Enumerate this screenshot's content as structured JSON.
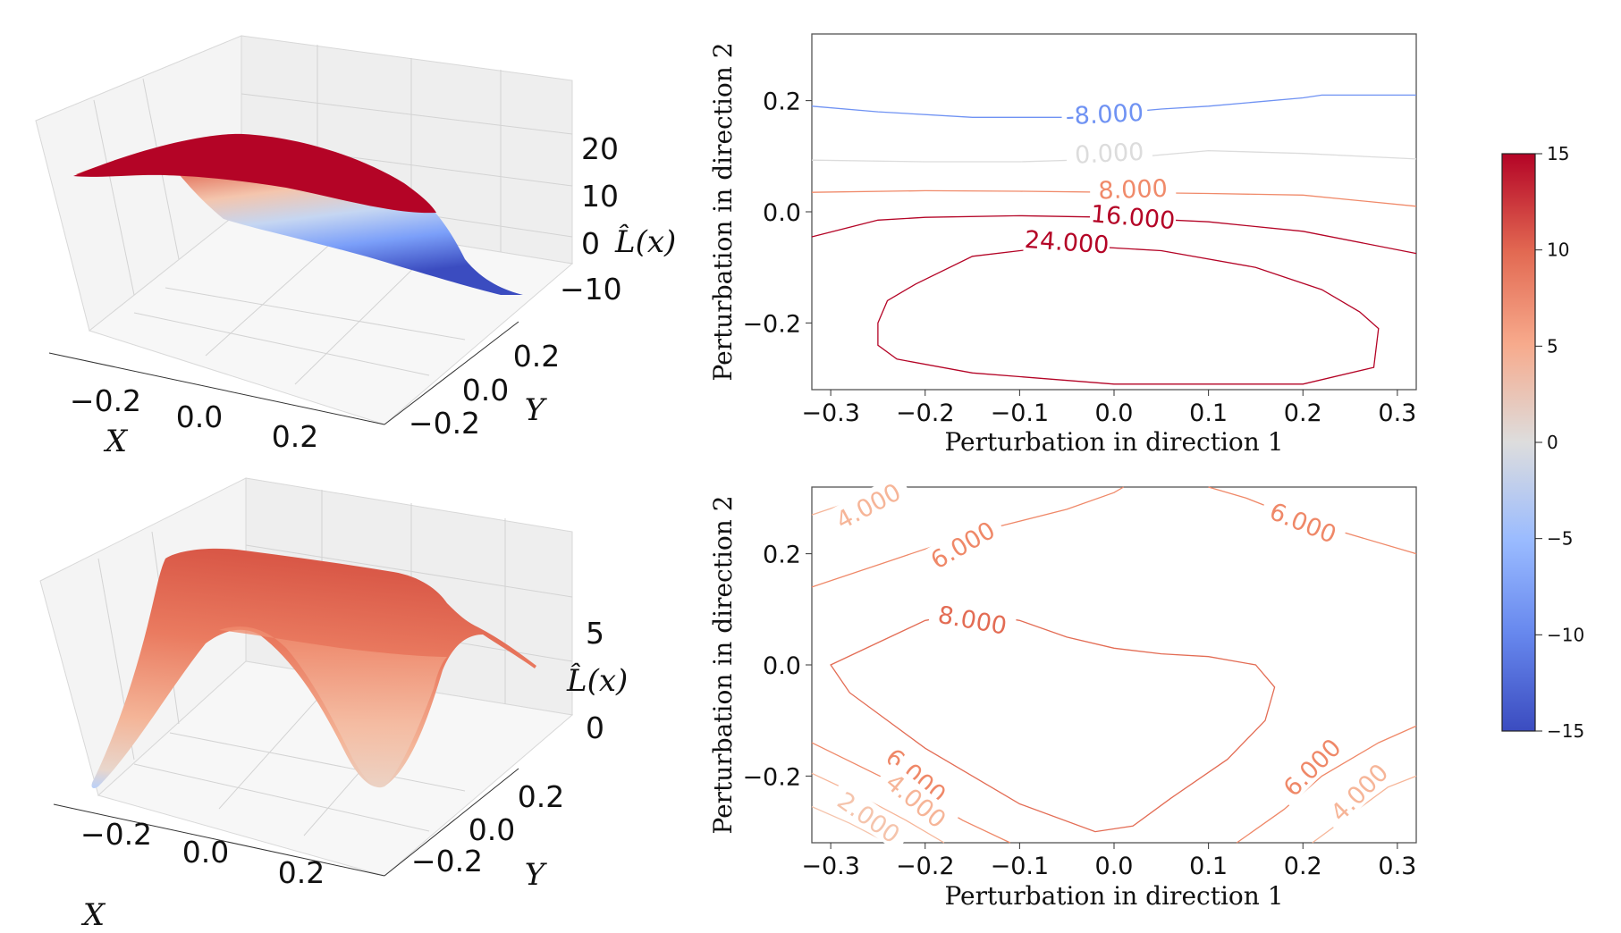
{
  "chart_data": [
    {
      "type": "surface3d",
      "panel": "top-left",
      "xlabel": "X",
      "ylabel": "Y",
      "zlabel": "L̂(x)",
      "x_ticks": [
        "−0.2",
        "0.0",
        "0.2"
      ],
      "y_ticks": [
        "−0.2",
        "0.0",
        "0.2"
      ],
      "z_ticks": [
        "20",
        "10",
        "0",
        "−10"
      ],
      "zlim": [
        -15,
        25
      ],
      "colormap": "coolwarm"
    },
    {
      "type": "contour",
      "panel": "top-right",
      "xlabel": "Perturbation in direction 1",
      "ylabel": "Perturbation in direction 2",
      "xlim": [
        -0.32,
        0.32
      ],
      "ylim": [
        -0.32,
        0.32
      ],
      "x_ticks": [
        "−0.3",
        "−0.2",
        "−0.1",
        "0.0",
        "0.1",
        "0.2",
        "0.3"
      ],
      "y_ticks": [
        "0.2",
        "0.0",
        "−0.2"
      ],
      "levels": [
        {
          "label": "-8.000",
          "value": -8,
          "color": "#6f92f3",
          "points": [
            [
              -0.32,
              0.19
            ],
            [
              -0.25,
              0.18
            ],
            [
              -0.15,
              0.17
            ],
            [
              -0.05,
              0.17
            ],
            [
              0.05,
              0.185
            ],
            [
              0.1,
              0.19
            ],
            [
              0.2,
              0.205
            ],
            [
              0.22,
              0.21
            ],
            [
              0.32,
              0.21
            ]
          ]
        },
        {
          "label": "0.000",
          "value": 0,
          "color": "#dcdcdc",
          "points": [
            [
              -0.32,
              0.093
            ],
            [
              -0.2,
              0.09
            ],
            [
              -0.1,
              0.09
            ],
            [
              0.0,
              0.095
            ],
            [
              0.1,
              0.11
            ],
            [
              0.2,
              0.105
            ],
            [
              0.32,
              0.095
            ]
          ]
        },
        {
          "label": "8.000",
          "value": 8,
          "color": "#f08a6a",
          "points": [
            [
              -0.32,
              0.035
            ],
            [
              -0.2,
              0.038
            ],
            [
              -0.1,
              0.037
            ],
            [
              0.0,
              0.035
            ],
            [
              0.1,
              0.033
            ],
            [
              0.2,
              0.03
            ],
            [
              0.32,
              0.01
            ]
          ]
        },
        {
          "label": "16.000",
          "value": 16,
          "color": "#b40426",
          "points": [
            [
              -0.32,
              -0.045
            ],
            [
              -0.25,
              -0.015
            ],
            [
              -0.2,
              -0.01
            ],
            [
              -0.1,
              -0.007
            ],
            [
              0.0,
              -0.01
            ],
            [
              0.1,
              -0.018
            ],
            [
              0.2,
              -0.035
            ],
            [
              0.32,
              -0.075
            ]
          ]
        },
        {
          "label": "24.000",
          "value": 24,
          "color": "#b40426",
          "closed": true,
          "points": [
            [
              -0.25,
              -0.2
            ],
            [
              -0.24,
              -0.16
            ],
            [
              -0.21,
              -0.13
            ],
            [
              -0.15,
              -0.08
            ],
            [
              -0.05,
              -0.06
            ],
            [
              0.05,
              -0.07
            ],
            [
              0.15,
              -0.1
            ],
            [
              0.22,
              -0.14
            ],
            [
              0.26,
              -0.18
            ],
            [
              0.28,
              -0.21
            ],
            [
              0.275,
              -0.28
            ],
            [
              0.2,
              -0.31
            ],
            [
              0.0,
              -0.31
            ],
            [
              -0.15,
              -0.29
            ],
            [
              -0.23,
              -0.265
            ],
            [
              -0.25,
              -0.24
            ]
          ]
        }
      ]
    },
    {
      "type": "surface3d",
      "panel": "bottom-left",
      "xlabel": "X",
      "ylabel": "Y",
      "zlabel": "L̂(x)",
      "x_ticks": [
        "−0.2",
        "0.0",
        "0.2"
      ],
      "y_ticks": [
        "−0.2",
        "0.0",
        "0.2"
      ],
      "z_ticks": [
        "5",
        "0"
      ],
      "colormap": "coolwarm"
    },
    {
      "type": "contour",
      "panel": "bottom-right",
      "xlabel": "Perturbation in direction 1",
      "ylabel": "Perturbation in direction 2",
      "xlim": [
        -0.32,
        0.32
      ],
      "ylim": [
        -0.32,
        0.32
      ],
      "x_ticks": [
        "−0.3",
        "−0.2",
        "−0.1",
        "0.0",
        "0.1",
        "0.2",
        "0.3"
      ],
      "y_ticks": [
        "0.2",
        "0.0",
        "−0.2"
      ],
      "levels": [
        {
          "label": "4.000",
          "value": 4,
          "color": "#f6b598",
          "points": [
            [
              -0.32,
              0.27
            ],
            [
              -0.25,
              0.31
            ],
            [
              -0.22,
              0.32
            ]
          ]
        },
        {
          "label": "6.000",
          "value": 6,
          "color": "#ef8868",
          "points": [
            [
              -0.32,
              0.14
            ],
            [
              -0.25,
              0.18
            ],
            [
              -0.18,
              0.22
            ],
            [
              -0.12,
              0.25
            ],
            [
              -0.05,
              0.28
            ],
            [
              0.0,
              0.31
            ],
            [
              0.01,
              0.32
            ]
          ]
        },
        {
          "label": "6.000",
          "value": 6,
          "color": "#ef8868",
          "points": [
            [
              0.1,
              0.32
            ],
            [
              0.14,
              0.3
            ],
            [
              0.2,
              0.26
            ],
            [
              0.26,
              0.23
            ],
            [
              0.32,
              0.2
            ]
          ]
        },
        {
          "label": "8.000",
          "value": 8,
          "color": "#e36c54",
          "closed": true,
          "points": [
            [
              -0.3,
              0.0
            ],
            [
              -0.25,
              0.04
            ],
            [
              -0.2,
              0.08
            ],
            [
              -0.15,
              0.095
            ],
            [
              -0.1,
              0.08
            ],
            [
              -0.05,
              0.05
            ],
            [
              0.0,
              0.03
            ],
            [
              0.05,
              0.02
            ],
            [
              0.1,
              0.015
            ],
            [
              0.15,
              0.0
            ],
            [
              0.17,
              -0.04
            ],
            [
              0.16,
              -0.1
            ],
            [
              0.12,
              -0.17
            ],
            [
              0.06,
              -0.24
            ],
            [
              0.02,
              -0.29
            ],
            [
              -0.02,
              -0.3
            ],
            [
              -0.1,
              -0.25
            ],
            [
              -0.2,
              -0.15
            ],
            [
              -0.28,
              -0.05
            ]
          ]
        },
        {
          "label": "6.000",
          "value": 6,
          "color": "#ef8868",
          "points": [
            [
              -0.32,
              -0.14
            ],
            [
              -0.26,
              -0.19
            ],
            [
              -0.2,
              -0.24
            ],
            [
              -0.16,
              -0.28
            ],
            [
              -0.11,
              -0.32
            ]
          ]
        },
        {
          "label": "4.000",
          "value": 4,
          "color": "#f6b598",
          "points": [
            [
              -0.32,
              -0.195
            ],
            [
              -0.27,
              -0.235
            ],
            [
              -0.22,
              -0.28
            ],
            [
              -0.18,
              -0.32
            ]
          ]
        },
        {
          "label": "2.000",
          "value": 2,
          "color": "#f5c4ac",
          "points": [
            [
              -0.32,
              -0.255
            ],
            [
              -0.28,
              -0.285
            ],
            [
              -0.24,
              -0.32
            ]
          ]
        },
        {
          "label": "6.000",
          "value": 6,
          "color": "#ef8868",
          "points": [
            [
              0.13,
              -0.32
            ],
            [
              0.18,
              -0.26
            ],
            [
              0.22,
              -0.2
            ],
            [
              0.28,
              -0.14
            ],
            [
              0.32,
              -0.11
            ]
          ]
        },
        {
          "label": "4.000",
          "value": 4,
          "color": "#f6b598",
          "points": [
            [
              0.21,
              -0.32
            ],
            [
              0.25,
              -0.27
            ],
            [
              0.29,
              -0.22
            ],
            [
              0.32,
              -0.2
            ]
          ]
        }
      ]
    },
    {
      "type": "colorbar",
      "panel": "right",
      "range": [
        -15,
        15
      ],
      "ticks": [
        "15",
        "10",
        "5",
        "0",
        "−5",
        "−10",
        "−15"
      ],
      "colormap": "coolwarm"
    }
  ]
}
